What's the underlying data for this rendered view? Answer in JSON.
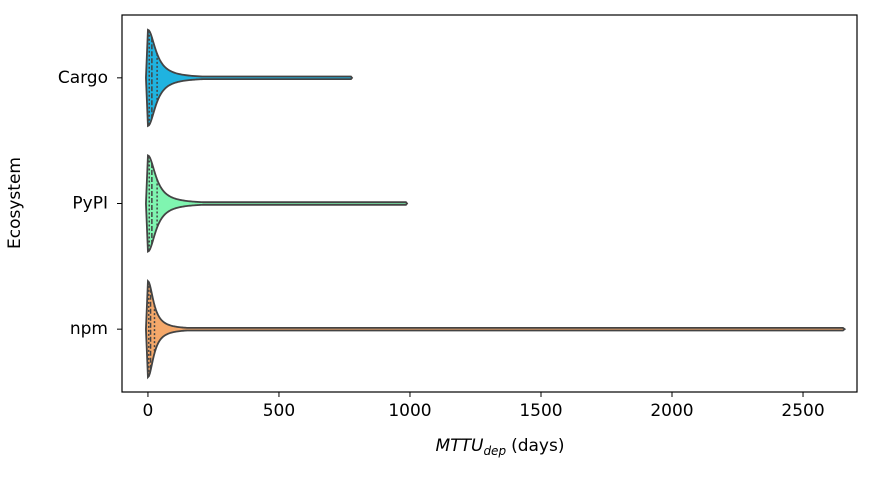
{
  "chart_data": {
    "type": "violin",
    "xlabel": {
      "main": "MTTU",
      "sub": "dep",
      "unit": "(days)"
    },
    "ylabel": "Ecosystem",
    "categories": [
      "Cargo",
      "PyPI",
      "npm"
    ],
    "series": [
      {
        "name": "Cargo",
        "color": "#1fb3e0",
        "min": 0,
        "q1": 5,
        "median": 15,
        "q3": 35,
        "max": 775
      },
      {
        "name": "PyPI",
        "color": "#7ff5b0",
        "min": 0,
        "q1": 5,
        "median": 15,
        "q3": 35,
        "max": 985
      },
      {
        "name": "npm",
        "color": "#f5a86a",
        "min": 0,
        "q1": 3,
        "median": 10,
        "q3": 25,
        "max": 2655
      }
    ],
    "xlim": [
      -99,
      2706
    ],
    "xticks": [
      0,
      500,
      1000,
      1500,
      2000,
      2500
    ]
  }
}
